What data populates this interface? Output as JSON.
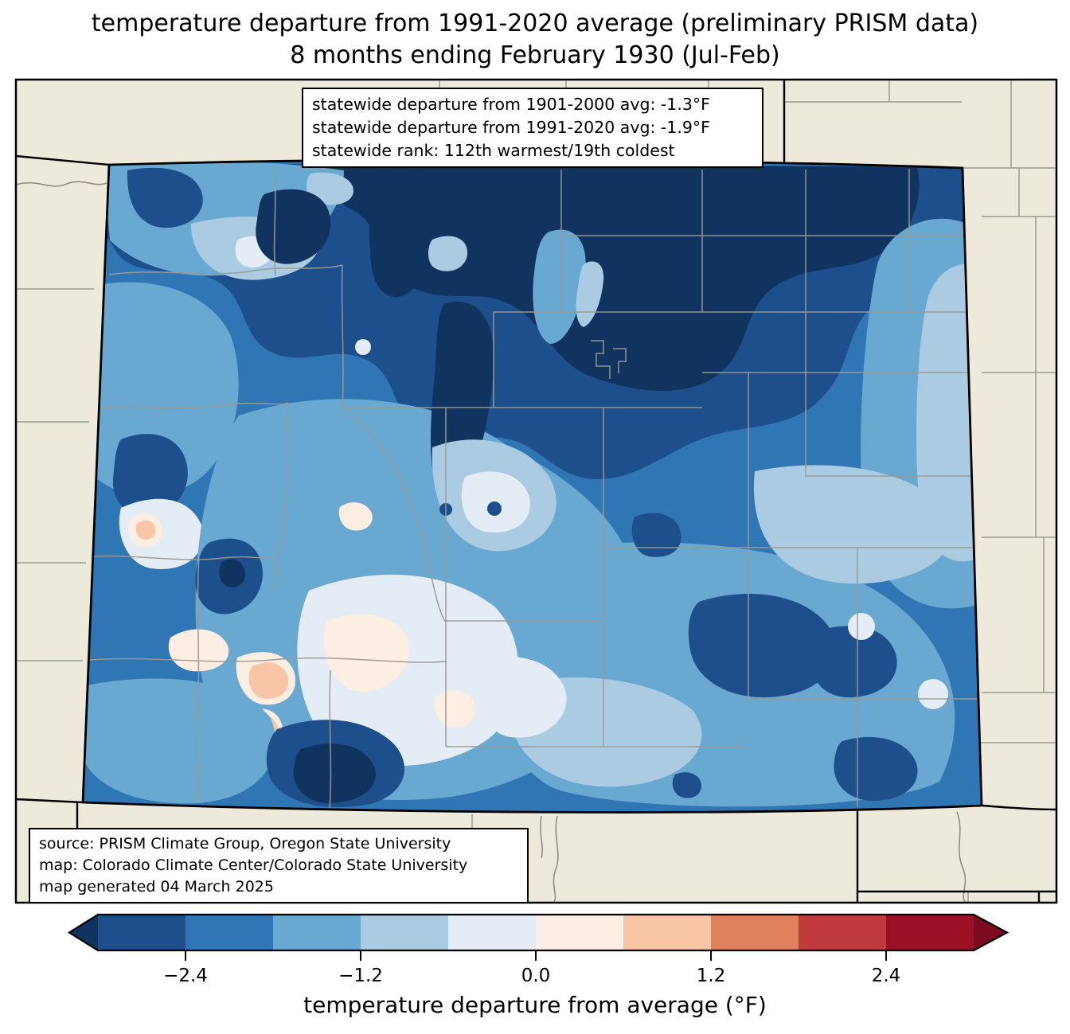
{
  "title": {
    "line1": "temperature departure from 1991-2020 average (preliminary PRISM data)",
    "line2": "8 months ending February 1930 (Jul-Feb)"
  },
  "stats_box": {
    "line1": "statewide departure from 1901-2000 avg: -1.3°F",
    "line2": "statewide departure from 1991-2020 avg: -1.9°F",
    "line3": "statewide rank: 112th warmest/19th coldest"
  },
  "source_box": {
    "line1": "source: PRISM Climate Group, Oregon State University",
    "line2": "map: Colorado Climate Center/Colorado State University",
    "line3": "map generated 04 March 2025"
  },
  "colorbar": {
    "label": "temperature departure from average (°F)",
    "tick_labels": [
      "−2.4",
      "−1.2",
      "0.0",
      "1.2",
      "2.4"
    ],
    "tick_values": [
      -2.4,
      -1.2,
      0.0,
      1.2,
      2.4
    ],
    "boundaries": [
      -3.0,
      -2.4,
      -1.8,
      -1.2,
      -0.6,
      0.0,
      0.6,
      1.2,
      1.8,
      2.4,
      3.0
    ],
    "segment_colors": [
      "#1d4f8c",
      "#3075b4",
      "#69a8d0",
      "#abcbe3",
      "#e4edf5",
      "#fceee3",
      "#f8c5a6",
      "#e0815d",
      "#c13a3e",
      "#9d1126"
    ],
    "arrow_low_color": "#11335f",
    "arrow_high_color": "#7c0b21"
  },
  "map": {
    "state": "Colorado",
    "background_color": "#edeadb",
    "county_line_color": "#9a9a93",
    "state_line_color": "#000000",
    "frame_color": "#000000",
    "river_line_color": "#908f88",
    "palette": {
      "m3_0": "#11335f",
      "m2_4": "#1d4f8c",
      "m1_8": "#3075b4",
      "m1_2": "#69a8d0",
      "m0_6": "#abcbe3",
      "m0_0": "#e4edf5",
      "p0_6": "#fceee3",
      "p1_2": "#f8c5a6"
    }
  }
}
